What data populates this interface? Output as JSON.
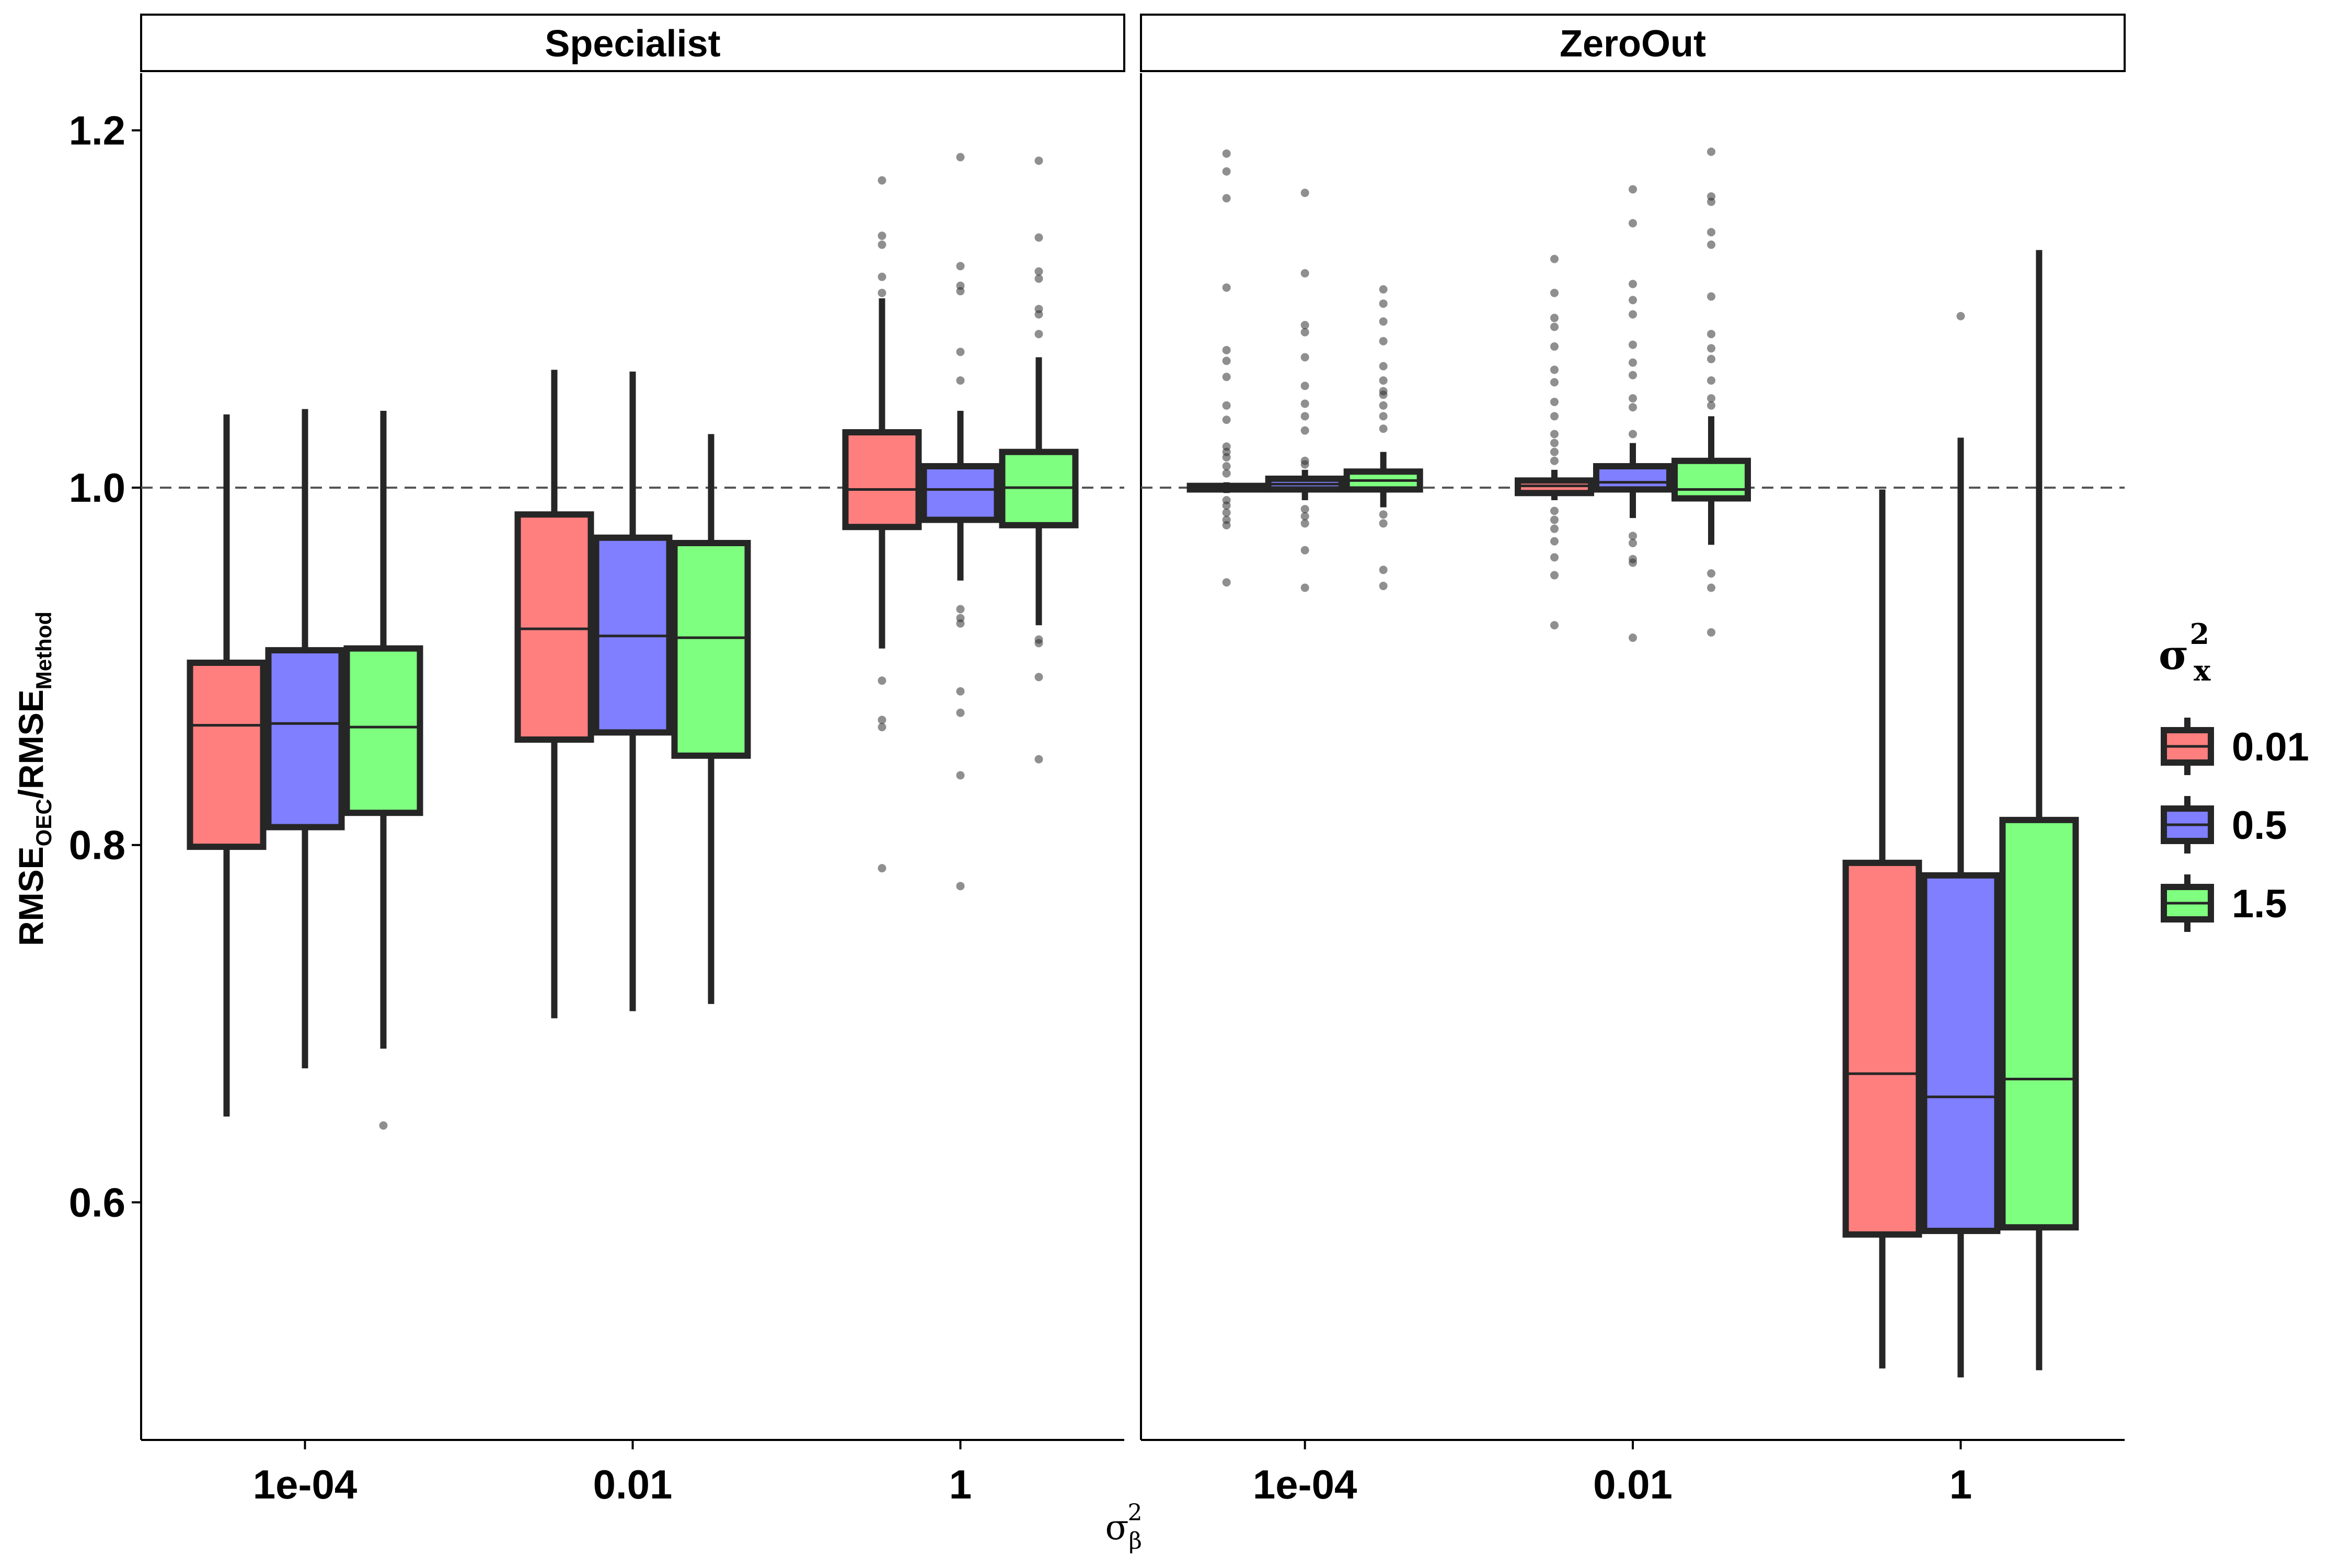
{
  "chart_data": {
    "type": "boxplot",
    "facet_variable": "method",
    "panels": [
      {
        "title": "Specialist",
        "groups": [
          {
            "x": "1e-04",
            "boxes": [
              {
                "series": "0.01",
                "q1": 0.799,
                "median": 0.867,
                "q3": 0.902,
                "whisker_low": 0.648,
                "whisker_high": 1.041,
                "outliers": []
              },
              {
                "series": "0.5",
                "q1": 0.81,
                "median": 0.868,
                "q3": 0.909,
                "whisker_low": 0.675,
                "whisker_high": 1.044,
                "outliers": []
              },
              {
                "series": "1.5",
                "q1": 0.818,
                "median": 0.866,
                "q3": 0.91,
                "whisker_low": 0.686,
                "whisker_high": 1.043,
                "outliers": [
                  0.643
                ]
              }
            ]
          },
          {
            "x": "0.01",
            "boxes": [
              {
                "series": "0.01",
                "q1": 0.859,
                "median": 0.921,
                "q3": 0.985,
                "whisker_low": 0.703,
                "whisker_high": 1.066,
                "outliers": []
              },
              {
                "series": "0.5",
                "q1": 0.863,
                "median": 0.917,
                "q3": 0.972,
                "whisker_low": 0.707,
                "whisker_high": 1.065,
                "outliers": []
              },
              {
                "series": "1.5",
                "q1": 0.85,
                "median": 0.916,
                "q3": 0.969,
                "whisker_low": 0.711,
                "whisker_high": 1.03,
                "outliers": []
              }
            ]
          },
          {
            "x": "1",
            "boxes": [
              {
                "series": "0.01",
                "q1": 0.978,
                "median": 0.999,
                "q3": 1.031,
                "whisker_low": 0.91,
                "whisker_high": 1.106,
                "outliers": [
                  1.172,
                  1.141,
                  1.136,
                  1.118,
                  1.109,
                  0.892,
                  0.87,
                  0.866,
                  0.787
                ]
              },
              {
                "series": "0.5",
                "q1": 0.982,
                "median": 0.999,
                "q3": 1.012,
                "whisker_low": 0.948,
                "whisker_high": 1.043,
                "outliers": [
                  1.185,
                  1.124,
                  1.113,
                  1.11,
                  1.076,
                  1.06,
                  0.932,
                  0.927,
                  0.924,
                  0.886,
                  0.874,
                  0.839,
                  0.777
                ]
              },
              {
                "series": "1.5",
                "q1": 0.979,
                "median": 1.0,
                "q3": 1.02,
                "whisker_low": 0.923,
                "whisker_high": 1.073,
                "outliers": [
                  1.183,
                  1.14,
                  1.121,
                  1.117,
                  1.1,
                  1.097,
                  1.086,
                  0.915,
                  0.913,
                  0.894,
                  0.848
                ]
              }
            ]
          }
        ]
      },
      {
        "title": "ZeroOut",
        "groups": [
          {
            "x": "1e-04",
            "boxes": [
              {
                "series": "0.01",
                "q1": 0.999,
                "median": 1.0,
                "q3": 1.001,
                "whisker_low": 0.997,
                "whisker_high": 1.003,
                "outliers": [
                  1.187,
                  1.177,
                  1.162,
                  1.112,
                  1.077,
                  1.071,
                  1.062,
                  1.046,
                  1.038,
                  1.023,
                  1.02,
                  1.017,
                  1.012,
                  1.008,
                  0.993,
                  0.99,
                  0.986,
                  0.982,
                  0.979,
                  0.947
                ]
              },
              {
                "series": "0.5",
                "q1": 0.999,
                "median": 1.002,
                "q3": 1.005,
                "whisker_low": 0.993,
                "whisker_high": 1.01,
                "outliers": [
                  1.165,
                  1.12,
                  1.091,
                  1.087,
                  1.073,
                  1.057,
                  1.047,
                  1.04,
                  1.032,
                  1.015,
                  1.013,
                  0.988,
                  0.984,
                  0.98,
                  0.965,
                  0.944
                ]
              },
              {
                "series": "1.5",
                "q1": 0.999,
                "median": 1.004,
                "q3": 1.009,
                "whisker_low": 0.989,
                "whisker_high": 1.02,
                "outliers": [
                  1.111,
                  1.103,
                  1.093,
                  1.082,
                  1.068,
                  1.06,
                  1.054,
                  1.052,
                  1.046,
                  1.04,
                  1.033,
                  0.985,
                  0.98,
                  0.954,
                  0.945
                ]
              }
            ]
          },
          {
            "x": "0.01",
            "boxes": [
              {
                "series": "0.01",
                "q1": 0.997,
                "median": 1.001,
                "q3": 1.004,
                "whisker_low": 0.993,
                "whisker_high": 1.01,
                "outliers": [
                  1.128,
                  1.109,
                  1.095,
                  1.09,
                  1.079,
                  1.066,
                  1.059,
                  1.048,
                  1.04,
                  1.03,
                  1.025,
                  1.02,
                  1.015,
                  0.987,
                  0.982,
                  0.977,
                  0.97,
                  0.961,
                  0.951,
                  0.923
                ]
              },
              {
                "series": "0.5",
                "q1": 0.999,
                "median": 1.003,
                "q3": 1.012,
                "whisker_low": 0.983,
                "whisker_high": 1.025,
                "outliers": [
                  1.167,
                  1.148,
                  1.114,
                  1.105,
                  1.097,
                  1.08,
                  1.07,
                  1.063,
                  1.05,
                  1.045,
                  1.03,
                  0.973,
                  0.969,
                  0.96,
                  0.958,
                  0.916
                ]
              },
              {
                "series": "1.5",
                "q1": 0.994,
                "median": 0.999,
                "q3": 1.015,
                "whisker_low": 0.968,
                "whisker_high": 1.04,
                "outliers": [
                  1.188,
                  1.163,
                  1.16,
                  1.143,
                  1.136,
                  1.107,
                  1.086,
                  1.078,
                  1.072,
                  1.06,
                  1.05,
                  1.046,
                  0.952,
                  0.944,
                  0.919
                ]
              }
            ]
          },
          {
            "x": "1",
            "boxes": [
              {
                "series": "0.01",
                "q1": 0.582,
                "median": 0.672,
                "q3": 0.79,
                "whisker_low": 0.507,
                "whisker_high": 0.999,
                "outliers": []
              },
              {
                "series": "0.5",
                "q1": 0.584,
                "median": 0.659,
                "q3": 0.783,
                "whisker_low": 0.502,
                "whisker_high": 1.028,
                "outliers": [
                  1.096
                ]
              },
              {
                "series": "1.5",
                "q1": 0.586,
                "median": 0.669,
                "q3": 0.814,
                "whisker_low": 0.506,
                "whisker_high": 1.133,
                "outliers": []
              }
            ]
          }
        ]
      }
    ],
    "ylim": [
      0.467,
      1.232
    ],
    "yticks": [
      "0.6",
      "0.8",
      "1.0",
      "1.2"
    ],
    "reference_line": {
      "y": 1.0,
      "style": "dashed"
    },
    "ylabel": {
      "main1": "RMSE",
      "sub1": "OEC",
      "slash": "/",
      "main2": "RMSE",
      "sub2": "Method"
    },
    "xlabel": {
      "main": "σ",
      "sup": "2",
      "sub": "β"
    },
    "legend": {
      "title": {
        "main": "σ",
        "sup": "2",
        "sub": "x"
      },
      "position": "right",
      "items": [
        {
          "label": "0.01",
          "color": "#FF7F7F"
        },
        {
          "label": "0.5",
          "color": "#7F7FFF"
        },
        {
          "label": "1.5",
          "color": "#7FFF7F"
        }
      ]
    },
    "grid": false
  }
}
